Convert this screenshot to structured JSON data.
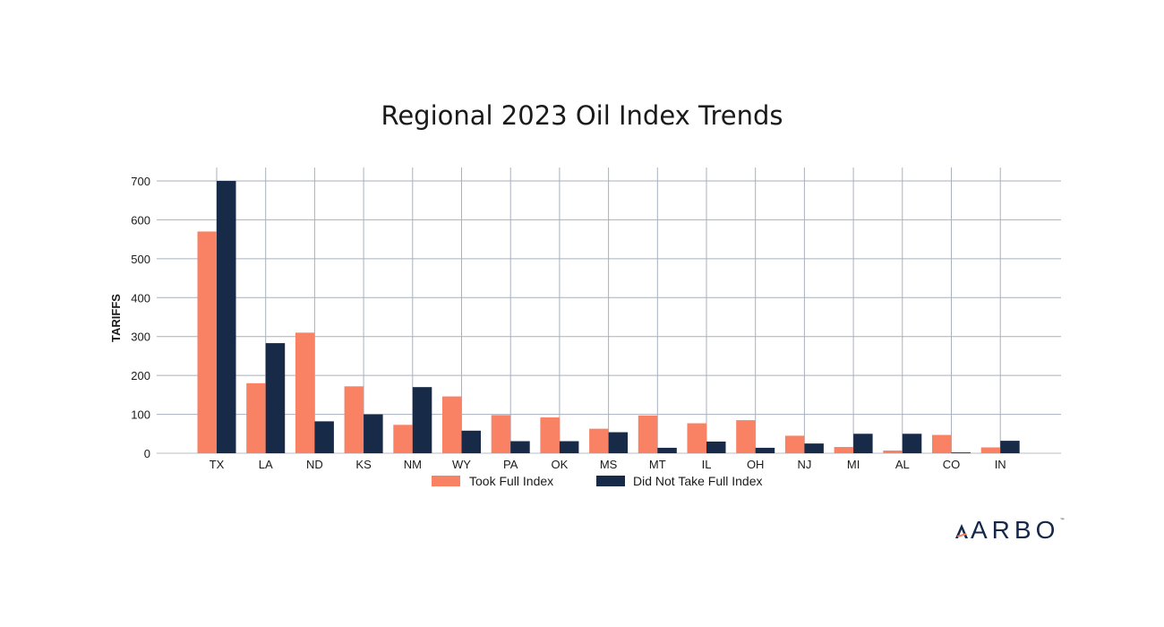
{
  "chart_data": {
    "type": "bar",
    "title": "Regional 2023 Oil Index Trends",
    "xlabel": "",
    "ylabel": "TARIFFS",
    "ylim": [
      0,
      700
    ],
    "yticks": [
      0,
      100,
      200,
      300,
      400,
      500,
      600,
      700
    ],
    "grid": true,
    "legend_position": "bottom",
    "categories": [
      "TX",
      "LA",
      "ND",
      "KS",
      "NM",
      "WY",
      "PA",
      "OK",
      "MS",
      "MT",
      "IL",
      "OH",
      "NJ",
      "MI",
      "AL",
      "CO",
      "IN"
    ],
    "series": [
      {
        "name": "Took Full Index",
        "color": "#fa8264",
        "values": [
          570,
          180,
          310,
          172,
          73,
          146,
          98,
          92,
          63,
          97,
          77,
          85,
          45,
          16,
          7,
          47,
          15
        ]
      },
      {
        "name": "Did Not Take Full Index",
        "color": "#172a48",
        "values": [
          700,
          283,
          82,
          100,
          170,
          58,
          31,
          31,
          54,
          14,
          30,
          14,
          25,
          50,
          50,
          2,
          32
        ]
      }
    ]
  },
  "colors": {
    "grid": "#a9b0be",
    "axis": "#b8bcc6"
  },
  "logo": {
    "text": "ARBO",
    "tm": "™",
    "icon": "arbo-chevron-icon"
  }
}
